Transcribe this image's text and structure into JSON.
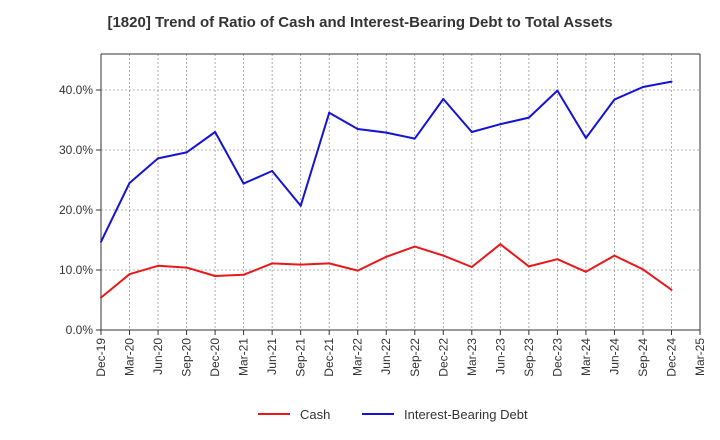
{
  "chart_data": {
    "type": "line",
    "title": "[1820]  Trend of Ratio of Cash and Interest-Bearing Debt to Total Assets",
    "xlabel": "",
    "ylabel": "",
    "categories": [
      "Dec-19",
      "Mar-20",
      "Jun-20",
      "Sep-20",
      "Dec-20",
      "Mar-21",
      "Jun-21",
      "Sep-21",
      "Dec-21",
      "Mar-22",
      "Jun-22",
      "Sep-22",
      "Dec-22",
      "Mar-23",
      "Jun-23",
      "Sep-23",
      "Dec-23",
      "Mar-24",
      "Jun-24",
      "Sep-24",
      "Dec-24",
      "Mar-25"
    ],
    "yticks": [
      "0.0%",
      "10.0%",
      "20.0%",
      "30.0%",
      "40.0%"
    ],
    "ylim": [
      0,
      46
    ],
    "grid": true,
    "legend_position": "bottom",
    "series": [
      {
        "name": "Cash",
        "color": "#e8191a",
        "values": [
          5.4,
          9.3,
          10.7,
          10.4,
          9.0,
          9.2,
          11.1,
          10.9,
          11.1,
          9.9,
          12.2,
          13.9,
          12.4,
          10.5,
          14.3,
          10.6,
          11.8,
          9.7,
          12.4,
          10.1,
          6.7,
          null
        ]
      },
      {
        "name": "Interest-Bearing Debt",
        "color": "#1414d2",
        "values": [
          14.7,
          24.5,
          28.6,
          29.6,
          33.0,
          24.4,
          26.5,
          20.7,
          36.2,
          33.5,
          32.9,
          31.9,
          38.5,
          33.0,
          34.3,
          35.4,
          39.9,
          32.0,
          38.4,
          40.5,
          41.4,
          null
        ]
      }
    ]
  }
}
